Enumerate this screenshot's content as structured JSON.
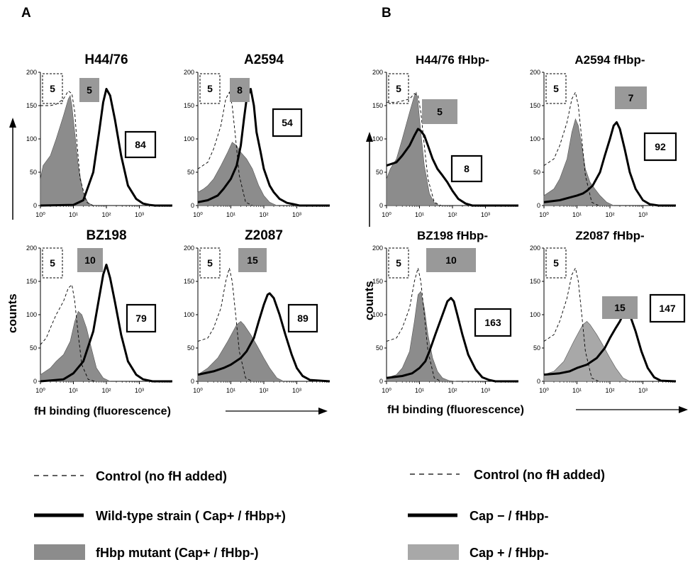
{
  "figure": {
    "panel_labels": [
      "A",
      "B"
    ],
    "counts_label": "counts",
    "xaxis_label": "fH binding (fluorescence)"
  },
  "colors": {
    "fill": "#8c8c8c",
    "fill_light": "#a8a8a8",
    "ink": "#000000",
    "box_gray": "#999999"
  },
  "chart_data": [
    {
      "type": "area",
      "panel": "A",
      "title": "H44/76",
      "x_scale": "log",
      "xlim": [
        1,
        10000
      ],
      "ylim": [
        0,
        200
      ],
      "y_ticks": [
        "200",
        "150",
        "100",
        "50",
        "0"
      ],
      "x_ticks": [
        "10⁰",
        "10¹",
        "10²",
        "10³"
      ],
      "labels": {
        "control": "5",
        "mutant": "5",
        "strain": "84"
      },
      "series": [
        {
          "role": "control",
          "x": [
            1,
            2,
            3,
            5,
            7,
            9,
            11,
            13,
            16,
            25,
            40
          ],
          "y": [
            150,
            150,
            152,
            160,
            172,
            168,
            140,
            90,
            40,
            5,
            0
          ]
        },
        {
          "role": "mutant",
          "x": [
            1,
            1.2,
            2,
            3,
            5,
            7,
            8,
            9,
            11,
            14,
            20,
            28,
            40
          ],
          "y": [
            40,
            60,
            75,
            100,
            135,
            160,
            165,
            150,
            110,
            60,
            18,
            4,
            0
          ]
        },
        {
          "role": "strain",
          "x": [
            1,
            10,
            20,
            40,
            60,
            80,
            100,
            130,
            180,
            280,
            450,
            800,
            1300,
            2000,
            3000,
            10000
          ],
          "y": [
            0,
            1,
            8,
            50,
            110,
            155,
            175,
            165,
            130,
            75,
            30,
            10,
            3,
            1,
            0,
            0
          ]
        }
      ]
    },
    {
      "type": "area",
      "panel": "A",
      "title": "A2594",
      "x_scale": "log",
      "xlim": [
        1,
        10000
      ],
      "ylim": [
        0,
        200
      ],
      "y_ticks": [
        "200",
        "150",
        "100",
        "50",
        "0"
      ],
      "x_ticks": [
        "10⁰",
        "10¹",
        "10²",
        "10³"
      ],
      "labels": {
        "control": "5",
        "mutant": "8",
        "strain": "54"
      },
      "series": [
        {
          "role": "control",
          "x": [
            1,
            2,
            3,
            5,
            7,
            9,
            11,
            14,
            18,
            28,
            45
          ],
          "y": [
            55,
            65,
            85,
            120,
            160,
            170,
            150,
            100,
            45,
            5,
            0
          ]
        },
        {
          "role": "mutant",
          "x": [
            1,
            1.5,
            2,
            3,
            5,
            8,
            11,
            15,
            20,
            30,
            45,
            70,
            100,
            150,
            250
          ],
          "y": [
            20,
            25,
            30,
            40,
            60,
            80,
            95,
            90,
            80,
            70,
            55,
            30,
            15,
            5,
            0
          ]
        },
        {
          "role": "strain",
          "x": [
            1,
            2,
            4,
            6,
            10,
            15,
            20,
            25,
            30,
            40,
            50,
            60,
            80,
            100,
            150,
            200,
            300,
            500,
            800,
            1200,
            10000
          ],
          "y": [
            5,
            8,
            15,
            25,
            40,
            60,
            90,
            130,
            160,
            175,
            150,
            110,
            80,
            55,
            30,
            20,
            10,
            4,
            2,
            0,
            0
          ]
        }
      ]
    },
    {
      "type": "area",
      "panel": "A",
      "title": "BZ198",
      "x_scale": "log",
      "xlim": [
        1,
        10000
      ],
      "ylim": [
        0,
        200
      ],
      "y_ticks": [
        "200",
        "150",
        "100",
        "50",
        "0"
      ],
      "x_ticks": [
        "10⁰",
        "10¹",
        "10²",
        "10³"
      ],
      "labels": {
        "control": "5",
        "mutant": "10",
        "strain": "79"
      },
      "series": [
        {
          "role": "control",
          "x": [
            1,
            1.5,
            2,
            3,
            5,
            7,
            9,
            11,
            14,
            18,
            28,
            45
          ],
          "y": [
            55,
            65,
            80,
            100,
            120,
            140,
            145,
            120,
            70,
            25,
            3,
            0
          ]
        },
        {
          "role": "mutant",
          "x": [
            1,
            2,
            3,
            5,
            8,
            11,
            14,
            18,
            25,
            35,
            50,
            80,
            130
          ],
          "y": [
            10,
            20,
            30,
            40,
            60,
            90,
            105,
            100,
            80,
            50,
            20,
            5,
            0
          ]
        },
        {
          "role": "strain",
          "x": [
            1,
            5,
            10,
            20,
            40,
            60,
            80,
            100,
            130,
            180,
            280,
            450,
            800,
            1300,
            2500,
            10000
          ],
          "y": [
            0,
            3,
            12,
            30,
            75,
            125,
            160,
            175,
            155,
            120,
            70,
            30,
            10,
            3,
            0,
            0
          ]
        }
      ]
    },
    {
      "type": "area",
      "panel": "A",
      "title": "Z2087",
      "x_scale": "log",
      "xlim": [
        1,
        10000
      ],
      "ylim": [
        0,
        200
      ],
      "y_ticks": [
        "200",
        "150",
        "100",
        "50",
        "0"
      ],
      "x_ticks": [
        "10⁰",
        "10¹",
        "10²",
        "10³"
      ],
      "labels": {
        "control": "5",
        "mutant": "15",
        "strain": "89"
      },
      "series": [
        {
          "role": "control",
          "x": [
            1,
            2,
            3,
            5,
            7,
            9,
            11,
            14,
            18,
            28,
            45
          ],
          "y": [
            60,
            65,
            80,
            110,
            150,
            170,
            150,
            100,
            45,
            5,
            0
          ]
        },
        {
          "role": "mutant",
          "x": [
            1,
            2,
            4,
            8,
            15,
            20,
            25,
            40,
            60,
            100,
            150,
            250,
            400
          ],
          "y": [
            10,
            20,
            35,
            60,
            85,
            90,
            85,
            70,
            55,
            35,
            20,
            5,
            0
          ]
        },
        {
          "role": "strain",
          "x": [
            1,
            3,
            6,
            10,
            20,
            30,
            50,
            70,
            100,
            130,
            150,
            200,
            300,
            450,
            700,
            1000,
            1500,
            2500,
            10000
          ],
          "y": [
            10,
            15,
            20,
            25,
            35,
            45,
            65,
            90,
            115,
            130,
            132,
            125,
            100,
            70,
            40,
            20,
            8,
            2,
            0
          ]
        }
      ]
    },
    {
      "type": "area",
      "panel": "B",
      "title": "H44/76 fHbp-",
      "x_scale": "log",
      "xlim": [
        1,
        10000
      ],
      "ylim": [
        0,
        200
      ],
      "y_ticks": [
        "200",
        "150",
        "100",
        "50",
        "0"
      ],
      "x_ticks": [
        "10⁰",
        "10¹",
        "10²",
        "10³"
      ],
      "labels": {
        "control": "5",
        "mutant": "5",
        "strain": "8"
      },
      "series": [
        {
          "role": "control",
          "x": [
            1,
            2,
            3,
            5,
            7,
            9,
            11,
            14,
            18,
            28,
            45
          ],
          "y": [
            155,
            155,
            157,
            160,
            168,
            165,
            140,
            90,
            40,
            5,
            0
          ]
        },
        {
          "role": "mutant",
          "x": [
            1,
            1.3,
            2,
            3,
            5,
            7,
            8,
            9,
            11,
            14,
            20,
            28,
            40
          ],
          "y": [
            40,
            55,
            70,
            100,
            140,
            165,
            170,
            155,
            110,
            60,
            18,
            4,
            0
          ]
        },
        {
          "role": "strain",
          "x": [
            1,
            2,
            3,
            5,
            7,
            9,
            11,
            14,
            18,
            25,
            35,
            50,
            70,
            100,
            150,
            250,
            400,
            10000
          ],
          "y": [
            60,
            65,
            75,
            90,
            105,
            115,
            112,
            105,
            90,
            70,
            55,
            45,
            35,
            22,
            10,
            3,
            0,
            0
          ]
        }
      ]
    },
    {
      "type": "area",
      "panel": "B",
      "title": "A2594 fHbp-",
      "x_scale": "log",
      "xlim": [
        1,
        10000
      ],
      "ylim": [
        0,
        200
      ],
      "y_ticks": [
        "200",
        "150",
        "100",
        "50",
        "0"
      ],
      "x_ticks": [
        "10⁰",
        "10¹",
        "10²",
        "10³"
      ],
      "labels": {
        "control": "5",
        "mutant": "7",
        "strain": "92"
      },
      "series": [
        {
          "role": "control",
          "x": [
            1,
            2,
            3,
            5,
            7,
            9,
            11,
            14,
            18,
            28,
            45
          ],
          "y": [
            60,
            70,
            90,
            125,
            160,
            170,
            150,
            100,
            45,
            5,
            0
          ]
        },
        {
          "role": "mutant",
          "x": [
            1,
            2,
            3,
            5,
            7,
            9,
            11,
            14,
            18,
            25,
            35,
            50,
            80,
            130
          ],
          "y": [
            15,
            25,
            40,
            70,
            110,
            130,
            120,
            90,
            55,
            35,
            25,
            15,
            5,
            0
          ]
        },
        {
          "role": "strain",
          "x": [
            1,
            3,
            6,
            10,
            15,
            20,
            30,
            50,
            70,
            100,
            130,
            160,
            200,
            280,
            400,
            600,
            1000,
            1600,
            3000,
            10000
          ],
          "y": [
            5,
            8,
            12,
            15,
            18,
            22,
            30,
            50,
            75,
            100,
            120,
            125,
            115,
            85,
            50,
            25,
            8,
            2,
            0,
            0
          ]
        }
      ]
    },
    {
      "type": "area",
      "panel": "B",
      "title": "BZ198 fHbp-",
      "x_scale": "log",
      "xlim": [
        1,
        10000
      ],
      "ylim": [
        0,
        200
      ],
      "y_ticks": [
        "200",
        "150",
        "100",
        "50",
        "0"
      ],
      "x_ticks": [
        "10⁰",
        "10¹",
        "10²",
        "10³"
      ],
      "labels": {
        "control": "5",
        "mutant": "10",
        "strain": "163"
      },
      "series": [
        {
          "role": "control",
          "x": [
            1,
            2,
            3,
            5,
            7,
            9,
            11,
            14,
            18,
            28,
            45
          ],
          "y": [
            60,
            65,
            80,
            110,
            150,
            170,
            150,
            100,
            45,
            5,
            0
          ]
        },
        {
          "role": "mutant",
          "x": [
            1,
            2,
            3,
            5,
            7,
            9,
            11,
            14,
            18,
            25,
            35,
            50,
            80,
            130
          ],
          "y": [
            5,
            10,
            20,
            45,
            90,
            130,
            135,
            110,
            70,
            35,
            15,
            5,
            1,
            0
          ]
        },
        {
          "role": "strain",
          "x": [
            1,
            3,
            6,
            10,
            15,
            20,
            30,
            50,
            70,
            90,
            110,
            140,
            200,
            300,
            500,
            800,
            1300,
            2000,
            10000
          ],
          "y": [
            5,
            8,
            12,
            20,
            30,
            45,
            70,
            100,
            120,
            125,
            120,
            100,
            70,
            40,
            18,
            6,
            2,
            0,
            0
          ]
        }
      ]
    },
    {
      "type": "area",
      "panel": "B",
      "title": "Z2087 fHbp-",
      "x_scale": "log",
      "xlim": [
        1,
        10000
      ],
      "ylim": [
        0,
        200
      ],
      "y_ticks": [
        "200",
        "150",
        "100",
        "50",
        "0"
      ],
      "x_ticks": [
        "10⁰",
        "10¹",
        "10²",
        "10³"
      ],
      "labels": {
        "control": "5",
        "mutant": "15",
        "strain": "147"
      },
      "series": [
        {
          "role": "control",
          "x": [
            1,
            2,
            3,
            5,
            7,
            9,
            11,
            14,
            18,
            28,
            45
          ],
          "y": [
            60,
            70,
            90,
            125,
            160,
            170,
            150,
            100,
            45,
            5,
            0
          ]
        },
        {
          "role": "mutant",
          "x": [
            1,
            2,
            4,
            8,
            15,
            20,
            25,
            40,
            60,
            100,
            150,
            250,
            400
          ],
          "y": [
            10,
            15,
            30,
            60,
            85,
            90,
            85,
            70,
            55,
            35,
            20,
            5,
            0
          ]
        },
        {
          "role": "strain",
          "x": [
            1,
            3,
            6,
            10,
            20,
            40,
            70,
            100,
            150,
            200,
            250,
            300,
            400,
            600,
            900,
            1400,
            2200,
            3500,
            10000
          ],
          "y": [
            10,
            12,
            15,
            20,
            25,
            35,
            50,
            65,
            80,
            90,
            100,
            110,
            100,
            75,
            45,
            20,
            6,
            1,
            0
          ]
        }
      ]
    }
  ],
  "legend": {
    "A": [
      {
        "type": "dashed",
        "label": "Control (no fH added)"
      },
      {
        "type": "thick",
        "label": "Wild-type strain ( Cap+ / fHbp+)"
      },
      {
        "type": "filled",
        "label": "fHbp mutant (Cap+ / fHbp-)"
      }
    ],
    "B": [
      {
        "type": "dashed",
        "label": "Control  (no fH added)"
      },
      {
        "type": "thick",
        "label": "Cap − /  fHbp-"
      },
      {
        "type": "filled",
        "label": "Cap + /  fHbp-"
      }
    ]
  }
}
